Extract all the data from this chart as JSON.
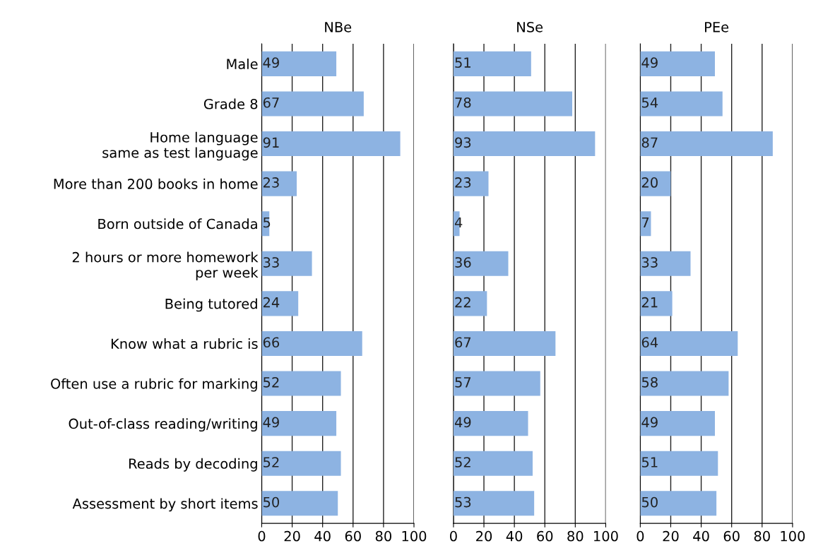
{
  "chart_data": [
    {
      "type": "bar",
      "orientation": "horizontal",
      "title": "NBe",
      "categories": [
        "Male",
        "Grade 8",
        "Home language\nsame as test language",
        "More than 200 books in home",
        "Born outside of Canada",
        "2 hours or more homework\nper week",
        "Being tutored",
        "Know what a rubric is",
        "Often use a rubric for marking",
        "Out-of-class reading/writing",
        "Reads by decoding",
        "Assessment by short items"
      ],
      "values": [
        49,
        67,
        91,
        23,
        5,
        33,
        24,
        66,
        52,
        49,
        52,
        50
      ],
      "color": "#8db3e2",
      "xlim": [
        0,
        100
      ],
      "xticks": [
        0,
        20,
        40,
        60,
        80,
        100
      ],
      "grid": "x",
      "data_labels": true
    },
    {
      "type": "bar",
      "orientation": "horizontal",
      "title": "NSe",
      "categories": [
        null,
        null,
        null,
        null,
        null,
        null,
        null,
        null,
        null,
        null,
        null,
        null
      ],
      "values": [
        51,
        78,
        93,
        23,
        4,
        36,
        22,
        67,
        57,
        49,
        52,
        53
      ],
      "color": "#8db3e2",
      "xlim": [
        0,
        100
      ],
      "xticks": [
        0,
        20,
        40,
        60,
        80,
        100
      ],
      "grid": "x",
      "data_labels": true,
      "tick_labels": "x"
    },
    {
      "type": "bar",
      "orientation": "horizontal",
      "title": "PEe",
      "categories": [
        null,
        null,
        null,
        null,
        null,
        null,
        null,
        null,
        null,
        null,
        null,
        null
      ],
      "values": [
        49,
        54,
        87,
        20,
        7,
        33,
        21,
        64,
        58,
        49,
        51,
        50
      ],
      "color": "#8db3e2",
      "xlim": [
        0,
        100
      ],
      "xticks": [
        0,
        20,
        40,
        60,
        80,
        100
      ],
      "grid": "x",
      "data_labels": true,
      "tick_labels": "x"
    }
  ]
}
